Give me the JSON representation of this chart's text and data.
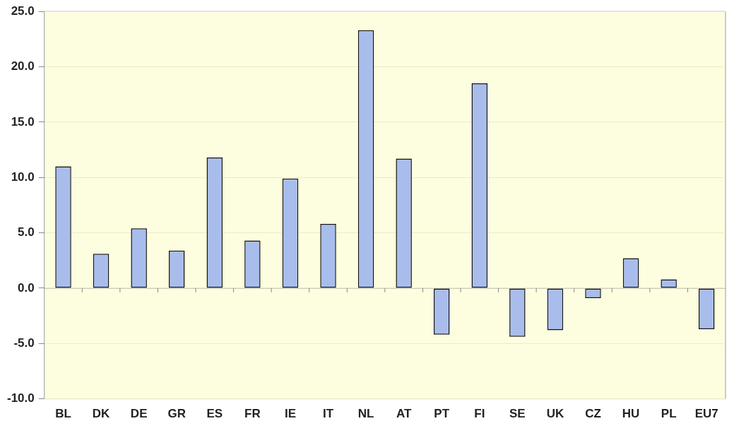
{
  "chart_data": {
    "type": "bar",
    "categories": [
      "BL",
      "DK",
      "DE",
      "GR",
      "ES",
      "FR",
      "IE",
      "IT",
      "NL",
      "AT",
      "PT",
      "FI",
      "SE",
      "UK",
      "CZ",
      "HU",
      "PL",
      "EU7"
    ],
    "values": [
      11.0,
      3.1,
      5.4,
      3.4,
      11.8,
      4.3,
      9.9,
      5.8,
      23.3,
      11.7,
      -4.2,
      18.5,
      -4.4,
      -3.8,
      -0.9,
      2.7,
      0.8,
      -3.7
    ],
    "color": "#a8bdec",
    "ylim": [
      -10,
      25
    ],
    "yticks": [
      {
        "value": -10,
        "label": "-10.0"
      },
      {
        "value": -5,
        "label": "-5.0"
      },
      {
        "value": 0,
        "label": "0.0"
      },
      {
        "value": 5,
        "label": "5.0"
      },
      {
        "value": 10,
        "label": "10.0"
      },
      {
        "value": 15,
        "label": "15.0"
      },
      {
        "value": 20,
        "label": "20.0"
      },
      {
        "value": 25,
        "label": "25.0"
      }
    ],
    "grid": "y",
    "legend": false
  }
}
